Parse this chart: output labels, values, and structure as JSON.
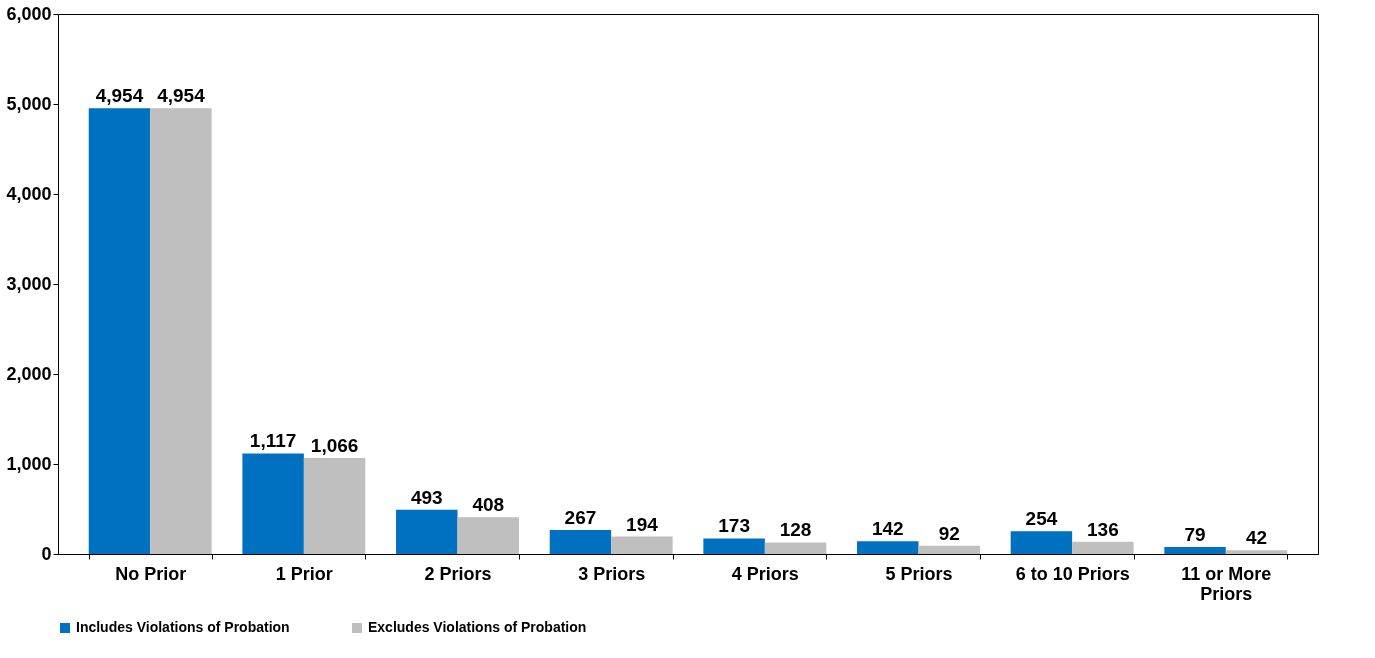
{
  "chart_data": {
    "type": "bar",
    "categories": [
      "No Prior",
      "1 Prior",
      "2 Priors",
      "3 Priors",
      "4 Priors",
      "5 Priors",
      "6 to 10 Priors",
      "11 or More Priors"
    ],
    "series": [
      {
        "name": "Includes Violations of Probation",
        "color": "#0070c0",
        "values": [
          4954,
          1117,
          493,
          267,
          173,
          142,
          254,
          79
        ],
        "value_labels": [
          "4,954",
          "1,117",
          "493",
          "267",
          "173",
          "142",
          "254",
          "79"
        ]
      },
      {
        "name": "Excludes Violations of Probation",
        "color": "#bfbfbf",
        "values": [
          4954,
          1066,
          408,
          194,
          128,
          92,
          136,
          42
        ],
        "value_labels": [
          "4,954",
          "1,066",
          "408",
          "194",
          "128",
          "92",
          "136",
          "42"
        ]
      }
    ],
    "ylim": [
      0,
      6000
    ],
    "yticks": [
      {
        "value": 0,
        "label": "0"
      },
      {
        "value": 1000,
        "label": "1,000"
      },
      {
        "value": 2000,
        "label": "2,000"
      },
      {
        "value": 3000,
        "label": "3,000"
      },
      {
        "value": 4000,
        "label": "4,000"
      },
      {
        "value": 5000,
        "label": "5,000"
      },
      {
        "value": 6000,
        "label": "6,000"
      }
    ],
    "legend": "bottom",
    "grid": false
  }
}
